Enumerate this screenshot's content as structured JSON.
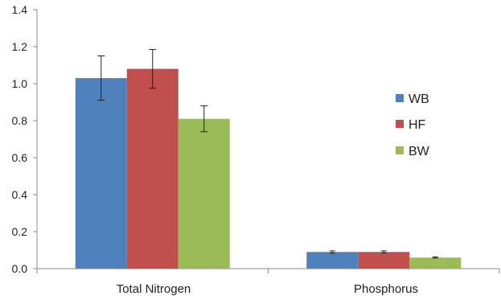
{
  "chart_data": {
    "type": "bar",
    "categories": [
      "Total Nitrogen",
      "Phosphorus"
    ],
    "series": [
      {
        "name": "WB",
        "values": [
          1.03,
          0.09
        ],
        "errors": [
          0.12,
          0.006
        ],
        "color": "#4f81bd"
      },
      {
        "name": "HF",
        "values": [
          1.08,
          0.09
        ],
        "errors": [
          0.105,
          0.006
        ],
        "color": "#c0504d"
      },
      {
        "name": "BW",
        "values": [
          0.81,
          0.06
        ],
        "errors": [
          0.07,
          0.003
        ],
        "color": "#9bbb59"
      }
    ],
    "yticks": [
      "0.0",
      "0.2",
      "0.4",
      "0.6",
      "0.8",
      "1.0",
      "1.2",
      "1.4"
    ],
    "ylim": [
      0,
      1.4
    ],
    "grid": false,
    "legend": "right"
  }
}
